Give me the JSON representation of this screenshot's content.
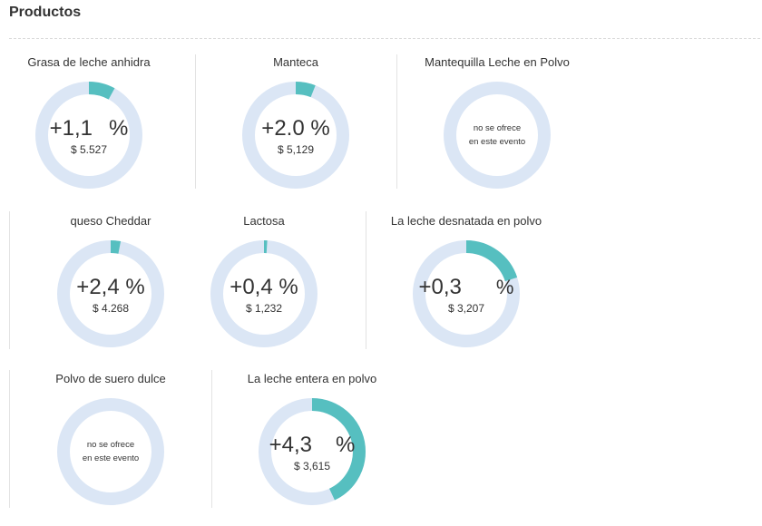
{
  "header": {
    "title": "Productos"
  },
  "colors": {
    "track": "#dbe6f5",
    "fill": "#56bfc0"
  },
  "products": [
    {
      "name": "Grasa de leche anhidra",
      "change": "+1,1",
      "unit": "%",
      "price": "$ 5.527",
      "fill_fraction": 0.08,
      "unit_detached": true
    },
    {
      "name": "Manteca",
      "change": "+2.0",
      "unit": "%",
      "price": "$ 5,129",
      "fill_fraction": 0.06
    },
    {
      "name": "Mantequilla Leche en Polvo",
      "not_offered_line1": "no se ofrece",
      "not_offered_line2": "en este evento"
    },
    {
      "name": "queso Cheddar",
      "change": "+2,4",
      "unit": "%",
      "price": "$ 4.268",
      "fill_fraction": 0.03
    },
    {
      "name": "Lactosa",
      "change": "+0,4",
      "unit": "%",
      "price": "$ 1,232",
      "fill_fraction": 0.01
    },
    {
      "name": "La leche desnatada en polvo",
      "change": "+0,3",
      "unit": "%",
      "price": "$ 3,207",
      "fill_fraction": 0.2,
      "unit_detached": true
    },
    {
      "name": "Polvo de suero dulce",
      "not_offered_line1": "no se ofrece",
      "not_offered_line2": "en este evento"
    },
    {
      "name": "La leche entera en polvo",
      "change": "+4,3",
      "unit": "%",
      "price": "$ 3,615",
      "fill_fraction": 0.43,
      "unit_detached": true
    }
  ]
}
